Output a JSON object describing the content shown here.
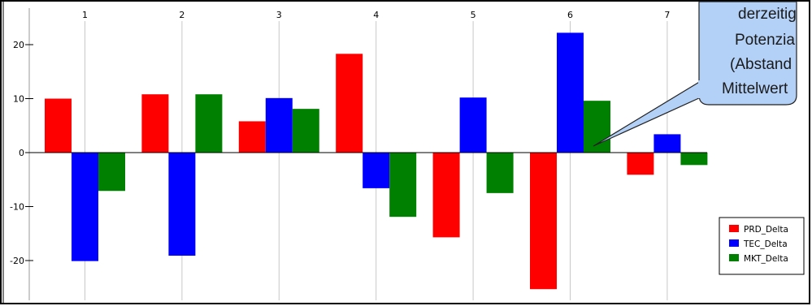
{
  "chart_data": {
    "type": "bar",
    "categories": [
      "1",
      "2",
      "3",
      "4",
      "5",
      "6",
      "7"
    ],
    "series": [
      {
        "name": "PRD_Delta",
        "color": "#ff0000",
        "values": [
          10.0,
          10.8,
          5.8,
          18.3,
          -15.7,
          -25.3,
          -4.1
        ]
      },
      {
        "name": "TEC_Delta",
        "color": "#0000ff",
        "values": [
          -20.1,
          -19.1,
          10.1,
          -6.6,
          10.2,
          22.2,
          3.4
        ]
      },
      {
        "name": "MKT_Delta",
        "color": "#008000",
        "values": [
          -7.1,
          10.8,
          8.1,
          -11.9,
          -7.5,
          9.6,
          -2.3
        ]
      }
    ],
    "yticks": [
      -20,
      -10,
      0,
      10,
      20
    ],
    "ylim": [
      -27,
      28
    ],
    "grid": "vertical",
    "legend_position": "right"
  },
  "callout": {
    "lines": [
      "derzeitig",
      "Potenzia",
      "(Abstand",
      "Mittelwert"
    ]
  }
}
